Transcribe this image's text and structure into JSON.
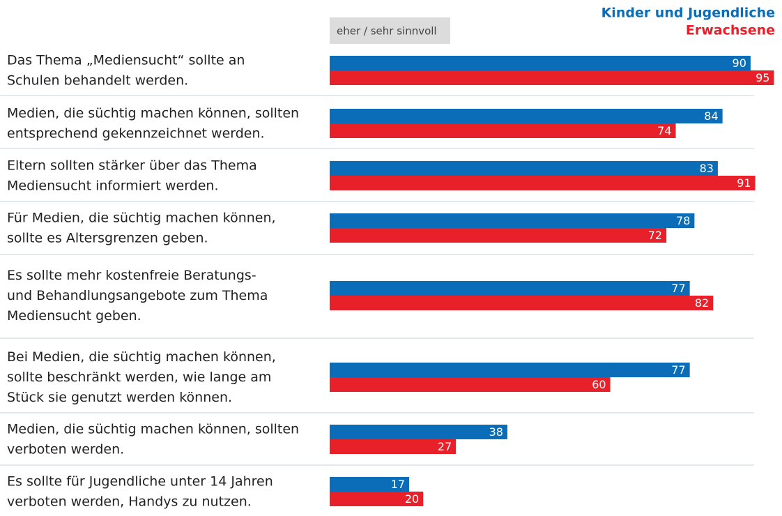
{
  "chart_data": {
    "type": "barh",
    "subtitle": "eher / sehr sinnvoll",
    "categories": [
      "Das Thema „Mediensucht“ sollte an\nSchulen behandelt werden.",
      "Medien, die süchtig machen können, sollten\nentsprechend gekennzeichnet werden.",
      "Eltern sollten stärker über das Thema\nMediensucht informiert werden.",
      "Für Medien, die süchtig machen können,\nsollte es Altersgrenzen geben.",
      "Es sollte mehr kostenfreie Beratungs-\nund Behandlungsangebote zum Thema\nMediensucht geben.",
      "Bei Medien, die süchtig machen können,\nsollte beschränkt werden, wie lange am\nStück sie genutzt werden können.",
      "Medien, die süchtig machen können, sollten\nverboten werden.",
      "Es sollte für Jugendliche unter 14 Jahren\nverboten werden, Handys zu nutzen."
    ],
    "series": [
      {
        "name": "Kinder und Jugendliche",
        "color": "#0b6db7",
        "values": [
          90,
          84,
          83,
          78,
          77,
          77,
          38,
          17
        ]
      },
      {
        "name": "Erwachsene",
        "color": "#e8202a",
        "values": [
          95,
          74,
          91,
          72,
          82,
          60,
          27,
          20
        ]
      }
    ],
    "legend": "top-right"
  }
}
